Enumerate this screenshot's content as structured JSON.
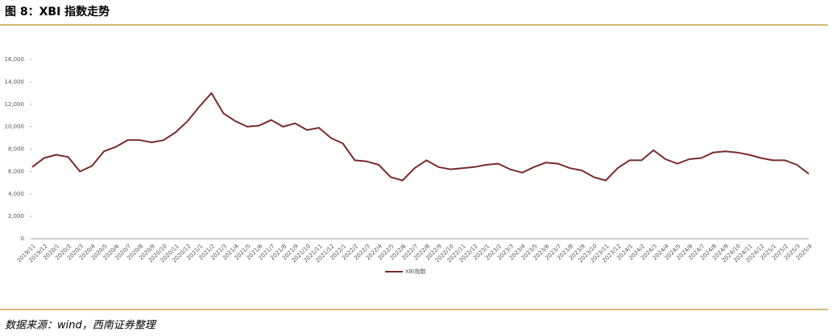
{
  "chart_data": {
    "type": "line",
    "title": "图 8：XBI 指数走势",
    "source": "数据来源：wind，西南证券整理",
    "categories": [
      "2019/11",
      "2019/12",
      "2020/1",
      "2020/2",
      "2020/3",
      "2020/4",
      "2020/5",
      "2020/6",
      "2020/7",
      "2020/8",
      "2020/9",
      "2020/10",
      "2020/11",
      "2020/12",
      "2021/1",
      "2021/2",
      "2021/3",
      "2021/4",
      "2021/5",
      "2021/6",
      "2021/7",
      "2021/8",
      "2021/9",
      "2021/10",
      "2021/11",
      "2021/12",
      "2022/1",
      "2022/2",
      "2022/3",
      "2022/4",
      "2022/5",
      "2022/6",
      "2022/7",
      "2022/8",
      "2022/9",
      "2022/10",
      "2022/11",
      "2022/12",
      "2023/1",
      "2023/2",
      "2023/3",
      "2023/4",
      "2023/5",
      "2023/6",
      "2023/7",
      "2023/8",
      "2023/9",
      "2023/10",
      "2023/11",
      "2023/12",
      "2024/1",
      "2024/2",
      "2024/3",
      "2024/4",
      "2024/5",
      "2024/6",
      "2024/7",
      "2024/8",
      "2024/9",
      "2024/10",
      "2024/11",
      "2024/12",
      "2025/1",
      "2025/2",
      "2025/3",
      "2025/4"
    ],
    "series": [
      {
        "name": "XBI指数",
        "color": "#7b2a2a",
        "values": [
          6400,
          7200,
          7500,
          7300,
          6000,
          6500,
          7800,
          8200,
          8800,
          8800,
          8600,
          8800,
          9500,
          10500,
          11800,
          13000,
          11200,
          10500,
          10000,
          10100,
          10600,
          10000,
          10300,
          9700,
          9900,
          9000,
          8500,
          7000,
          6900,
          6600,
          5500,
          5200,
          6300,
          7000,
          6400,
          6200,
          6300,
          6400,
          6600,
          6700,
          6200,
          5900,
          6400,
          6800,
          6700,
          6300,
          6100,
          5500,
          5200,
          6300,
          7000,
          7000,
          7900,
          7100,
          6700,
          7100,
          7200,
          7700,
          7800,
          7700,
          7500,
          7200,
          7000,
          7000,
          6600,
          5800
        ]
      }
    ],
    "ylim": [
      0,
      16000
    ],
    "yticks": [
      0,
      {
        "value": 2000,
        "label": "2,000"
      },
      {
        "value": 4000,
        "label": "4,000"
      },
      {
        "value": 6000,
        "label": "6,000"
      },
      {
        "value": 8000,
        "label": "8,000"
      },
      {
        "value": 10000,
        "label": "10,000"
      },
      {
        "value": 12000,
        "label": "12,000"
      },
      {
        "value": 14000,
        "label": "14,000"
      },
      {
        "value": 16000,
        "label": "16,000"
      }
    ],
    "legend": "bottom"
  }
}
